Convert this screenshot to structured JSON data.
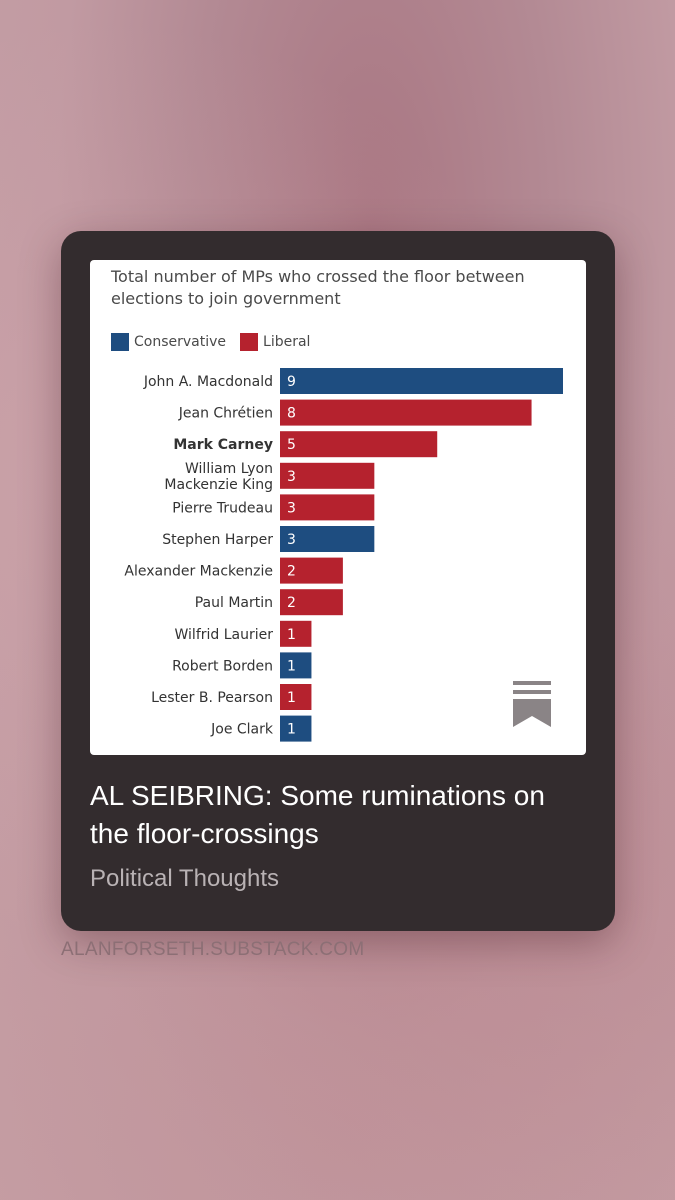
{
  "card": {
    "title": "AL SEIBRING: Some ruminations on the floor-crossings",
    "subtitle": "Political Thoughts"
  },
  "site": {
    "url": "ALANFORSETH.SUBSTACK.COM"
  },
  "icons": {
    "bookmark": "bookmark-icon"
  },
  "colors": {
    "conservative": "#1e4d80",
    "liberal": "#b5222e",
    "card_bg": "#332c2e"
  },
  "chart_data": {
    "type": "bar",
    "orientation": "horizontal",
    "title": "Total number of MPs who crossed the floor between elections to join government",
    "legend": {
      "placement": "top-left",
      "entries": [
        "Conservative",
        "Liberal"
      ]
    },
    "categories": [
      "John A. Macdonald",
      "Jean Chrétien",
      "Mark Carney",
      "William Lyon Mackenzie King",
      "Pierre Trudeau",
      "Stephen Harper",
      "Alexander Mackenzie",
      "Paul Martin",
      "Wilfrid Laurier",
      "Robert Borden",
      "Lester B. Pearson",
      "Joe Clark"
    ],
    "category_lines": [
      [
        "John A. Macdonald"
      ],
      [
        "Jean Chrétien"
      ],
      [
        "Mark Carney"
      ],
      [
        "William Lyon",
        "Mackenzie King"
      ],
      [
        "Pierre Trudeau"
      ],
      [
        "Stephen Harper"
      ],
      [
        "Alexander Mackenzie"
      ],
      [
        "Paul Martin"
      ],
      [
        "Wilfrid Laurier"
      ],
      [
        "Robert Borden"
      ],
      [
        "Lester B. Pearson"
      ],
      [
        "Joe Clark"
      ]
    ],
    "highlighted": [
      "Mark Carney"
    ],
    "values": [
      9,
      8,
      5,
      3,
      3,
      3,
      2,
      2,
      1,
      1,
      1,
      1
    ],
    "party": [
      "Conservative",
      "Liberal",
      "Liberal",
      "Liberal",
      "Liberal",
      "Conservative",
      "Liberal",
      "Liberal",
      "Liberal",
      "Conservative",
      "Liberal",
      "Conservative"
    ],
    "xlim": [
      0,
      9
    ],
    "grid": false
  }
}
